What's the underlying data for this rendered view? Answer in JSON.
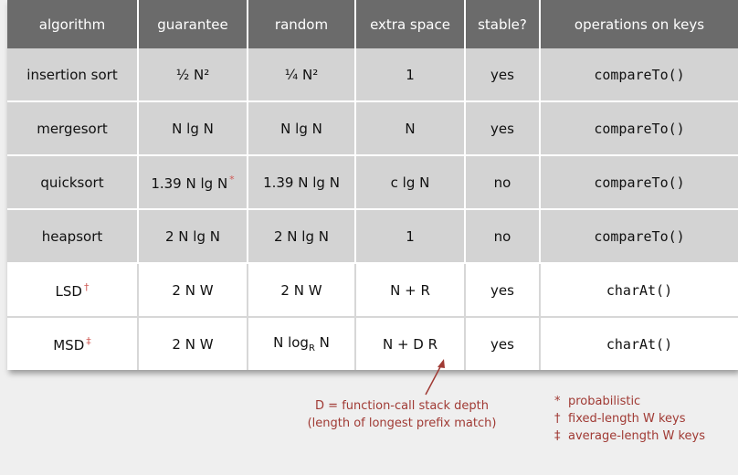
{
  "headers": [
    "algorithm",
    "guarantee",
    "random",
    "extra space",
    "stable?",
    "operations on keys"
  ],
  "rows": [
    {
      "algorithm": "insertion sort",
      "guarantee": "½ N²",
      "random": "¼ N²",
      "extra_space": "1",
      "stable": "yes",
      "operations": "compareTo()"
    },
    {
      "algorithm": "mergesort",
      "guarantee": "N lg N",
      "random": "N lg N",
      "extra_space": "N",
      "stable": "yes",
      "operations": "compareTo()"
    },
    {
      "algorithm": "quicksort",
      "guarantee": "1.39 N lg N",
      "guarantee_mark": "*",
      "random": "1.39 N lg N",
      "extra_space": "c lg N",
      "stable": "no",
      "operations": "compareTo()"
    },
    {
      "algorithm": "heapsort",
      "guarantee": "2 N lg N",
      "random": "2 N lg N",
      "extra_space": "1",
      "stable": "no",
      "operations": "compareTo()"
    },
    {
      "algorithm": "LSD",
      "algorithm_mark": "†",
      "guarantee": "2 N W",
      "random": "2 N W",
      "extra_space": "N + R",
      "stable": "yes",
      "operations": "charAt()"
    },
    {
      "algorithm": "MSD",
      "algorithm_mark": "‡",
      "guarantee": "2 N W",
      "random_pre": "N log",
      "random_sub": "R",
      "random_post": " N",
      "extra_space": "N + D R",
      "stable": "yes",
      "operations": "charAt()"
    }
  ],
  "annotation": {
    "line1": "D = function-call stack depth",
    "line2": "(length of longest prefix match)"
  },
  "legend": [
    {
      "symbol": "*",
      "text": "probabilistic"
    },
    {
      "symbol": "†",
      "text": "fixed-length W keys"
    },
    {
      "symbol": "‡",
      "text": "average-length W keys"
    }
  ],
  "colors": {
    "header_bg": "#6b6b6b",
    "compare_row_bg": "#d3d3d3",
    "accent_red": "#a03a34"
  }
}
